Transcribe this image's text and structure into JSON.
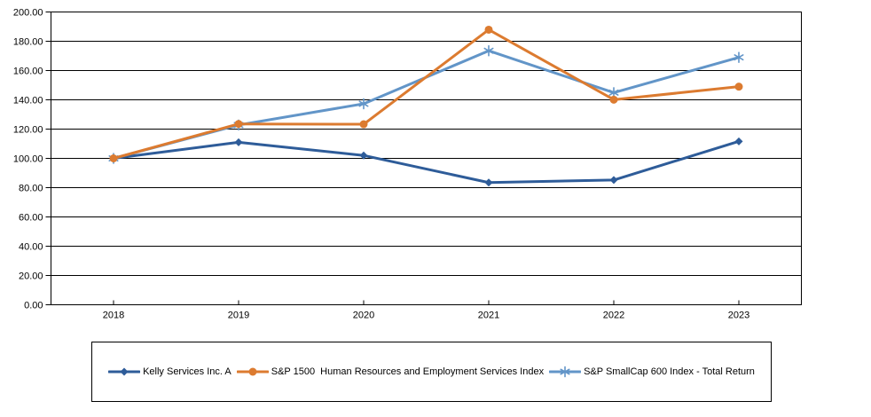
{
  "chart_data": {
    "type": "line",
    "title": "",
    "xlabel": "",
    "ylabel": "",
    "categories": [
      "2018",
      "2019",
      "2020",
      "2021",
      "2022",
      "2023"
    ],
    "ylim": [
      0,
      200
    ],
    "ytick_step": 20,
    "yticks": [
      "200.00",
      "180.00",
      "160.00",
      "140.00",
      "120.00",
      "100.00",
      "80.00",
      "60.00",
      "40.00",
      "20.00",
      "0.00"
    ],
    "grid": true,
    "legend_position": "bottom",
    "plot_border_color": "#000000",
    "gridline_color": "#000000",
    "background_color": "#ffffff",
    "series": [
      {
        "name": "Kelly Services Inc. A",
        "color": "#2E5C99",
        "marker": "diamond",
        "values": [
          100.0,
          111.0,
          102.0,
          83.5,
          85.2,
          111.6
        ]
      },
      {
        "name": "S&P 1500  Human Resources and Employment Services Index",
        "color": "#DC7B30",
        "marker": "circle",
        "values": [
          100.0,
          123.5,
          123.3,
          187.9,
          140.1,
          149.0
        ]
      },
      {
        "name": "S&P SmallCap 600 Index - Total Return",
        "color": "#6295C8",
        "marker": "asterisk",
        "values": [
          100.0,
          122.8,
          137.3,
          173.5,
          144.9,
          169.0
        ]
      }
    ]
  }
}
